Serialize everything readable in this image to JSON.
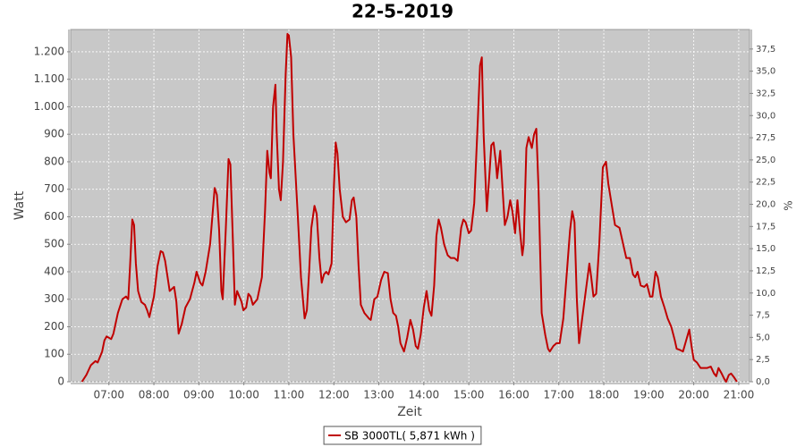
{
  "chart_data": {
    "type": "line",
    "title": "22-5-2019",
    "xlabel": "Zeit",
    "ylabel": "Watt",
    "y2label": "%",
    "x": [
      6.4,
      6.5,
      6.6,
      6.7,
      6.75,
      6.85,
      6.9,
      6.95,
      7.05,
      7.1,
      7.2,
      7.3,
      7.38,
      7.43,
      7.47,
      7.52,
      7.56,
      7.6,
      7.65,
      7.72,
      7.8,
      7.85,
      7.9,
      8.0,
      8.08,
      8.15,
      8.2,
      8.25,
      8.35,
      8.45,
      8.5,
      8.55,
      8.62,
      8.7,
      8.8,
      8.9,
      8.95,
      9.03,
      9.08,
      9.15,
      9.25,
      9.35,
      9.4,
      9.45,
      9.5,
      9.53,
      9.6,
      9.66,
      9.7,
      9.75,
      9.8,
      9.85,
      9.9,
      9.95,
      9.99,
      10.05,
      10.1,
      10.15,
      10.2,
      10.3,
      10.4,
      10.47,
      10.52,
      10.57,
      10.6,
      10.65,
      10.7,
      10.73,
      10.78,
      10.82,
      10.87,
      10.93,
      10.97,
      11.0,
      11.05,
      11.1,
      11.2,
      11.27,
      11.35,
      11.4,
      11.45,
      11.5,
      11.57,
      11.62,
      11.68,
      11.73,
      11.78,
      11.83,
      11.88,
      11.95,
      12.0,
      12.04,
      12.08,
      12.13,
      12.2,
      12.27,
      12.35,
      12.4,
      12.44,
      12.5,
      12.55,
      12.6,
      12.68,
      12.78,
      12.82,
      12.9,
      12.97,
      13.05,
      13.12,
      13.2,
      13.26,
      13.32,
      13.38,
      13.43,
      13.48,
      13.56,
      13.63,
      13.7,
      13.76,
      13.82,
      13.87,
      13.93,
      14.0,
      14.06,
      14.12,
      14.17,
      14.23,
      14.28,
      14.33,
      14.38,
      14.45,
      14.53,
      14.6,
      14.68,
      14.75,
      14.83,
      14.88,
      14.93,
      15.0,
      15.05,
      15.12,
      15.2,
      15.25,
      15.29,
      15.33,
      15.4,
      15.46,
      15.5,
      15.55,
      15.6,
      15.63,
      15.7,
      15.75,
      15.8,
      15.86,
      15.92,
      15.97,
      16.03,
      16.08,
      16.13,
      16.19,
      16.22,
      16.28,
      16.33,
      16.4,
      16.45,
      16.5,
      16.55,
      16.62,
      16.7,
      16.76,
      16.8,
      16.88,
      16.95,
      17.02,
      17.1,
      17.18,
      17.25,
      17.3,
      17.35,
      17.4,
      17.45,
      17.52,
      17.6,
      17.68,
      17.72,
      17.77,
      17.83,
      17.9,
      17.98,
      18.05,
      18.1,
      18.18,
      18.25,
      18.35,
      18.43,
      18.5,
      18.58,
      18.65,
      18.7,
      18.75,
      18.82,
      18.9,
      18.96,
      19.03,
      19.08,
      19.15,
      19.2,
      19.27,
      19.35,
      19.42,
      19.5,
      19.58,
      19.62,
      19.7,
      19.76,
      19.83,
      19.9,
      19.95,
      20.0,
      20.07,
      20.15,
      20.3,
      20.38,
      20.45,
      20.5,
      20.55,
      20.62,
      20.68,
      20.72,
      20.78,
      20.83,
      20.9,
      20.96
    ],
    "series": [
      {
        "name": "SB 3000TL( 5,871 kWh )",
        "color": "#c00000",
        "values": [
          0,
          25,
          60,
          75,
          70,
          110,
          150,
          165,
          155,
          175,
          250,
          300,
          310,
          300,
          420,
          590,
          570,
          430,
          330,
          290,
          280,
          260,
          235,
          310,
          420,
          475,
          470,
          440,
          330,
          345,
          290,
          175,
          210,
          270,
          300,
          360,
          400,
          360,
          350,
          400,
          500,
          705,
          680,
          550,
          330,
          300,
          560,
          810,
          790,
          540,
          280,
          330,
          310,
          290,
          260,
          270,
          320,
          310,
          280,
          300,
          380,
          620,
          840,
          760,
          740,
          1000,
          1080,
          900,
          700,
          660,
          800,
          1120,
          1265,
          1260,
          1180,
          900,
          600,
          380,
          230,
          260,
          400,
          560,
          640,
          610,
          450,
          360,
          390,
          400,
          390,
          430,
          700,
          870,
          830,
          700,
          600,
          580,
          590,
          660,
          670,
          600,
          420,
          280,
          250,
          230,
          225,
          300,
          310,
          370,
          400,
          395,
          300,
          250,
          240,
          200,
          140,
          110,
          160,
          225,
          190,
          130,
          120,
          170,
          270,
          330,
          260,
          240,
          350,
          530,
          590,
          560,
          500,
          460,
          450,
          450,
          440,
          560,
          590,
          580,
          540,
          550,
          650,
          950,
          1150,
          1180,
          900,
          620,
          760,
          860,
          870,
          800,
          740,
          840,
          700,
          570,
          600,
          660,
          620,
          540,
          660,
          560,
          460,
          500,
          850,
          890,
          850,
          900,
          920,
          700,
          250,
          170,
          120,
          110,
          130,
          140,
          140,
          230,
          400,
          550,
          620,
          580,
          300,
          140,
          230,
          330,
          430,
          380,
          310,
          320,
          500,
          780,
          800,
          720,
          640,
          570,
          560,
          500,
          450,
          450,
          390,
          380,
          400,
          350,
          345,
          355,
          310,
          310,
          400,
          380,
          310,
          270,
          230,
          200,
          150,
          120,
          115,
          110,
          150,
          190,
          130,
          80,
          70,
          50,
          50,
          55,
          30,
          20,
          50,
          30,
          10,
          0,
          25,
          30,
          15,
          0
        ]
      }
    ],
    "xlim": [
      6.15,
      21.24
    ],
    "xticks": [
      {
        "value": 7,
        "label": "07:00"
      },
      {
        "value": 8,
        "label": "08:00"
      },
      {
        "value": 9,
        "label": "09:00"
      },
      {
        "value": 10,
        "label": "10:00"
      },
      {
        "value": 11,
        "label": "11:00"
      },
      {
        "value": 12,
        "label": "12:00"
      },
      {
        "value": 13,
        "label": "13:00"
      },
      {
        "value": 14,
        "label": "14:00"
      },
      {
        "value": 15,
        "label": "15:00"
      },
      {
        "value": 16,
        "label": "16:00"
      },
      {
        "value": 17,
        "label": "17:00"
      },
      {
        "value": 18,
        "label": "18:00"
      },
      {
        "value": 19,
        "label": "19:00"
      },
      {
        "value": 20,
        "label": "20:00"
      },
      {
        "value": 21,
        "label": "21:00"
      }
    ],
    "ylim": [
      0,
      1281
    ],
    "yticks": [
      0,
      100,
      200,
      300,
      400,
      500,
      600,
      700,
      800,
      900,
      {
        "value": 1000,
        "label": "1.000"
      },
      {
        "value": 1100,
        "label": "1.100"
      },
      {
        "value": 1200,
        "label": "1.200"
      }
    ],
    "y2lim": [
      0,
      39.7
    ],
    "y2ticks": [
      {
        "value": 0,
        "label": "0,0"
      },
      {
        "value": 2.5,
        "label": "2,5"
      },
      {
        "value": 5,
        "label": "5,0"
      },
      {
        "value": 7.5,
        "label": "7,5"
      },
      {
        "value": 10,
        "label": "10,0"
      },
      {
        "value": 12.5,
        "label": "12,5"
      },
      {
        "value": 15,
        "label": "15,0"
      },
      {
        "value": 17.5,
        "label": "17,5"
      },
      {
        "value": 20,
        "label": "20,0"
      },
      {
        "value": 22.5,
        "label": "22,5"
      },
      {
        "value": 25,
        "label": "25,0"
      },
      {
        "value": 27.5,
        "label": "27,5"
      },
      {
        "value": 30,
        "label": "30,0"
      },
      {
        "value": 32.5,
        "label": "32,5"
      },
      {
        "value": 35,
        "label": "35,0"
      },
      {
        "value": 37.5,
        "label": "37,5"
      }
    ],
    "grid": true,
    "plot_background": "#c8c8c8",
    "legend": "bottom"
  }
}
